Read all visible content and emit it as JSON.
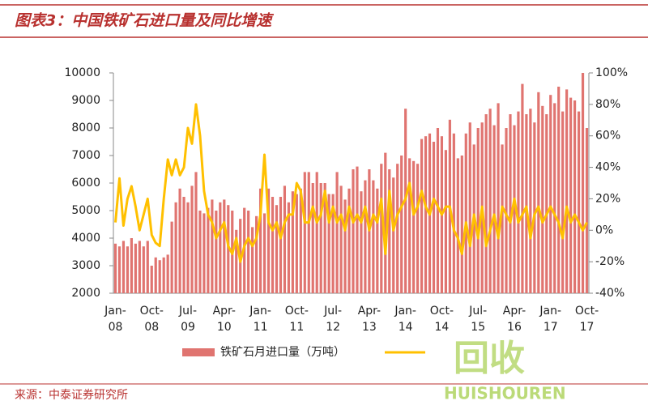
{
  "chart_data": {
    "type": "bar-line",
    "title": "图表3：中国铁矿石进口量及同比增速",
    "source": "来源：中泰证券研究所",
    "watermark": [
      "回收",
      "HUISHOUREN"
    ],
    "categories": [
      "Jan-08",
      null,
      null,
      null,
      null,
      null,
      null,
      null,
      null,
      "Oct-08",
      null,
      null,
      null,
      null,
      null,
      null,
      null,
      null,
      "Jul-09",
      null,
      null,
      null,
      null,
      null,
      null,
      null,
      null,
      "Apr-10",
      null,
      null,
      null,
      null,
      null,
      null,
      null,
      null,
      "Jan-11",
      null,
      null,
      null,
      null,
      null,
      null,
      null,
      null,
      "Oct-11",
      null,
      null,
      null,
      null,
      null,
      null,
      null,
      null,
      "Jul-12",
      null,
      null,
      null,
      null,
      null,
      null,
      null,
      null,
      "Apr-13",
      null,
      null,
      null,
      null,
      null,
      null,
      null,
      null,
      "Jan-14",
      null,
      null,
      null,
      null,
      null,
      null,
      null,
      null,
      "Oct-14",
      null,
      null,
      null,
      null,
      null,
      null,
      null,
      null,
      "Jul-15",
      null,
      null,
      null,
      null,
      null,
      null,
      null,
      null,
      "Apr-16",
      null,
      null,
      null,
      null,
      null,
      null,
      null,
      null,
      "Jan-17",
      null,
      null,
      null,
      null,
      null,
      null,
      null,
      null,
      "Oct-17"
    ],
    "ylim": [
      2000,
      10000
    ],
    "yticks": [
      2000,
      3000,
      4000,
      5000,
      6000,
      7000,
      8000,
      9000,
      10000
    ],
    "y2lim": [
      -40,
      100
    ],
    "y2ticks": [
      {
        "value": -40,
        "label": "-40%"
      },
      {
        "value": -20,
        "label": "-20%"
      },
      {
        "value": 0,
        "label": "0%"
      },
      {
        "value": 20,
        "label": "20%"
      },
      {
        "value": 40,
        "label": "40%"
      },
      {
        "value": 60,
        "label": "60%"
      },
      {
        "value": 80,
        "label": "80%"
      },
      {
        "value": 100,
        "label": "100%"
      }
    ],
    "series": [
      {
        "name": "铁矿石月进口量（万吨）",
        "type": "bar",
        "color": "#e07470",
        "values": [
          3800,
          3700,
          3900,
          3700,
          4000,
          3800,
          3900,
          3700,
          3900,
          3000,
          3300,
          3200,
          3300,
          3400,
          4600,
          5300,
          5800,
          5500,
          5300,
          5900,
          6400,
          5000,
          4900,
          5100,
          5400,
          5000,
          5300,
          5400,
          5200,
          5000,
          4300,
          4700,
          5100,
          5000,
          4400,
          4800,
          5800,
          4900,
          5800,
          5500,
          5200,
          5500,
          5900,
          5300,
          5700,
          5600,
          5800,
          6400,
          6400,
          6000,
          6400,
          6000,
          6000,
          5600,
          5600,
          6400,
          5900,
          5400,
          5800,
          6500,
          6600,
          5700,
          6100,
          6500,
          6100,
          5800,
          6700,
          7100,
          6500,
          6200,
          6700,
          7000,
          8700,
          6900,
          6800,
          6700,
          7600,
          7700,
          7800,
          7500,
          8000,
          7700,
          7200,
          8300,
          7800,
          6900,
          7000,
          7800,
          8200,
          7400,
          8000,
          8200,
          8500,
          8700,
          8100,
          8900,
          7400,
          8000,
          8500,
          8100,
          8600,
          9600,
          8500,
          8700,
          8200,
          9300,
          8800,
          8500,
          9200,
          8900,
          9500,
          8600,
          9400,
          9100,
          9000,
          8600,
          10000,
          8000
        ]
      },
      {
        "type": "line",
        "axis": "y2",
        "color": "#ffc000",
        "values": [
          5,
          33,
          3,
          20,
          28,
          15,
          0,
          10,
          20,
          -3,
          -8,
          -10,
          20,
          45,
          35,
          45,
          35,
          40,
          65,
          55,
          80,
          60,
          25,
          10,
          5,
          -5,
          0,
          5,
          -10,
          -15,
          -5,
          -20,
          -10,
          -5,
          -10,
          -5,
          10,
          48,
          5,
          0,
          5,
          -5,
          5,
          10,
          10,
          30,
          25,
          5,
          5,
          15,
          5,
          10,
          25,
          5,
          15,
          5,
          10,
          0,
          15,
          5,
          10,
          5,
          15,
          0,
          10,
          5,
          20,
          -15,
          25,
          0,
          10,
          15,
          20,
          30,
          10,
          15,
          25,
          15,
          10,
          20,
          15,
          10,
          15,
          15,
          0,
          -5,
          -15,
          5,
          -10,
          10,
          -5,
          15,
          -10,
          0,
          10,
          -5,
          15,
          10,
          5,
          20,
          5,
          10,
          15,
          -5,
          10,
          15,
          5,
          10,
          15,
          10,
          5,
          -5,
          15,
          5,
          10,
          5,
          0,
          5
        ]
      }
    ]
  }
}
